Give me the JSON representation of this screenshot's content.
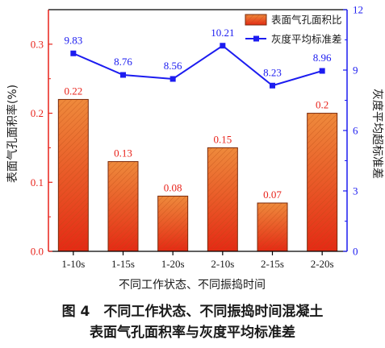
{
  "chart_data": {
    "type": "bar",
    "categories": [
      "1-10s",
      "1-15s",
      "1-20s",
      "2-10s",
      "2-15s",
      "2-20s"
    ],
    "series": [
      {
        "name": "表面气孔面积比",
        "type": "bar",
        "axis": "left",
        "values": [
          0.22,
          0.13,
          0.08,
          0.15,
          0.07,
          0.2
        ],
        "labels": [
          "0.22",
          "0.13",
          "0.08",
          "0.15",
          "0.07",
          "0.2"
        ],
        "color": "#e8562a"
      },
      {
        "name": "灰度平均标准差",
        "type": "line",
        "axis": "right",
        "values": [
          9.83,
          8.76,
          8.56,
          10.21,
          8.23,
          8.96
        ],
        "labels": [
          "9.83",
          "8.76",
          "8.56",
          "10.21",
          "8.23",
          "8.96"
        ],
        "color": "#1c1cf0"
      }
    ],
    "xlabel": "不同工作状态、不同振捣时间",
    "ylabel": "表面气孔面积率(%)",
    "y2label": "灰度平均超标准差",
    "ylim": [
      0,
      0.35
    ],
    "y2lim": [
      0,
      12
    ],
    "yticks": [
      "0.0",
      "0.1",
      "0.2",
      "0.3"
    ],
    "y2ticks": [
      "0",
      "3",
      "6",
      "9",
      "12"
    ],
    "legend_position": "top-right",
    "grid": false
  },
  "caption": {
    "line1": "图 4　不同工作状态、不同振捣时间混凝土",
    "line2": "表面气孔面积率与灰度平均标准差"
  }
}
